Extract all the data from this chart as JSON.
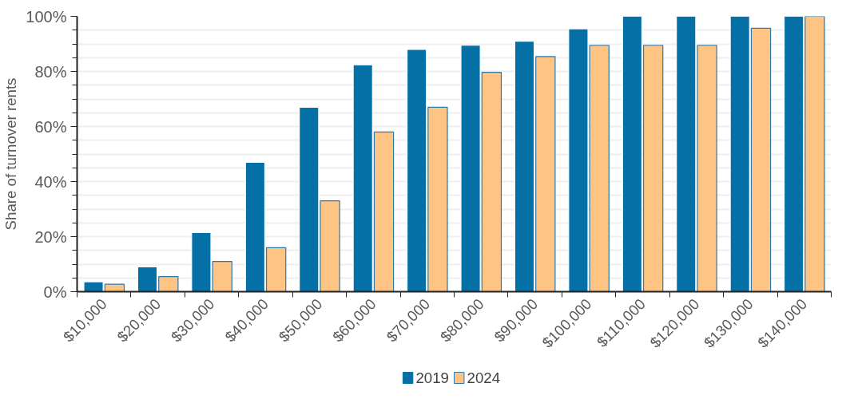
{
  "chart_data": {
    "type": "bar",
    "ylabel": "Share of turnover rents",
    "categories": [
      "$10,000",
      "$20,000",
      "$30,000",
      "$40,000",
      "$50,000",
      "$60,000",
      "$70,000",
      "$80,000",
      "$90,000",
      "$100,000",
      "$110,000",
      "$120,000",
      "$130,000",
      "$140,000"
    ],
    "series": [
      {
        "name": "2019",
        "color": "#0570a6",
        "values": [
          3.6,
          9,
          21.5,
          47,
          67,
          82.4,
          88,
          89.5,
          91,
          95.5,
          100,
          100,
          100,
          100
        ]
      },
      {
        "name": "2024",
        "color": "#fdc484",
        "values": [
          2.7,
          5.5,
          11,
          16,
          33,
          58,
          67,
          79.7,
          85.4,
          89.5,
          89.5,
          89.5,
          95.7,
          100
        ]
      }
    ],
    "ylim": [
      0,
      100
    ],
    "yticks": [
      {
        "value": 0,
        "label": "0%"
      },
      {
        "value": 5,
        "label": null
      },
      {
        "value": 10,
        "label": null
      },
      {
        "value": 15,
        "label": null
      },
      {
        "value": 20,
        "label": "20%"
      },
      {
        "value": 25,
        "label": null
      },
      {
        "value": 30,
        "label": null
      },
      {
        "value": 35,
        "label": null
      },
      {
        "value": 40,
        "label": "40%"
      },
      {
        "value": 45,
        "label": null
      },
      {
        "value": 50,
        "label": null
      },
      {
        "value": 55,
        "label": null
      },
      {
        "value": 60,
        "label": "60%"
      },
      {
        "value": 65,
        "label": null
      },
      {
        "value": 70,
        "label": null
      },
      {
        "value": 75,
        "label": null
      },
      {
        "value": 80,
        "label": "80%"
      },
      {
        "value": 85,
        "label": null
      },
      {
        "value": 90,
        "label": null
      },
      {
        "value": 95,
        "label": null
      },
      {
        "value": 100,
        "label": "100%"
      }
    ],
    "grid": "y",
    "legend": "bottom"
  }
}
